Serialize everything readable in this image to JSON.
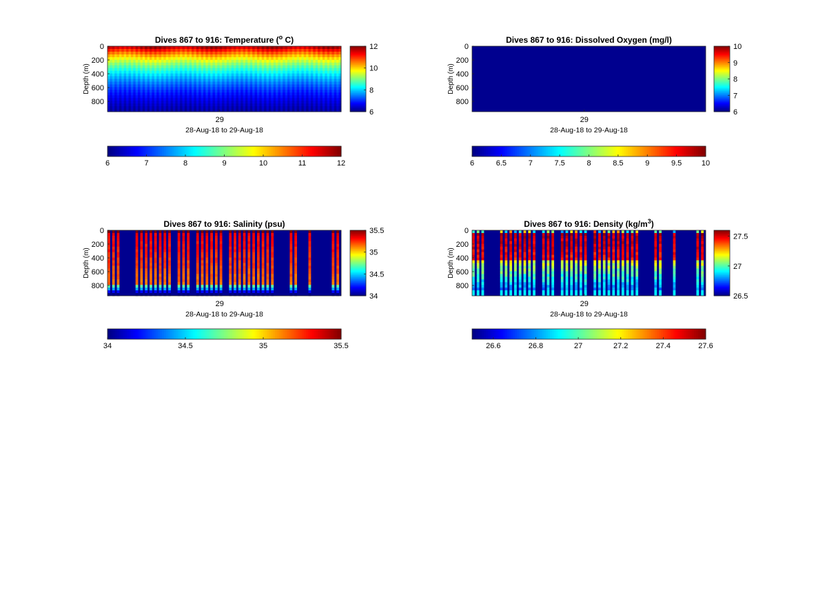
{
  "figure": {
    "background": "#ffffff",
    "colormap": "jet",
    "below_color": "#00008f"
  },
  "chart_data": [
    {
      "id": "temperature",
      "type": "heatmap",
      "title": "Dives 867 to 916: Temperature (",
      "title_sup": "o",
      "title_tail": " C)",
      "ylabel": "Depth (m)",
      "y_ticks": [
        0,
        200,
        400,
        600,
        800
      ],
      "ylim": [
        0,
        950
      ],
      "y_reversed": true,
      "x_ticks": [
        "29"
      ],
      "xlabel": "28-Aug-18 to 29-Aug-18",
      "clim": [
        6,
        12
      ],
      "colorbar_right_ticks": [
        "12",
        "10",
        "8",
        "6"
      ],
      "colorbar_right_tick_values": [
        12,
        10,
        8,
        6
      ],
      "colorbar_bottom_ticks": [
        "6",
        "7",
        "8",
        "9",
        "10",
        "11",
        "12"
      ],
      "colorbar_bottom_tick_values": [
        6,
        7,
        8,
        9,
        10,
        11,
        12
      ],
      "n_dives": 50,
      "pattern": "temperature",
      "gaps": []
    },
    {
      "id": "oxygen",
      "type": "heatmap",
      "title": "Dives 867 to 916: Dissolved Oxygen (mg/l)",
      "title_sup": "",
      "title_tail": "",
      "ylabel": "Depth (m)",
      "y_ticks": [
        0,
        200,
        400,
        600,
        800
      ],
      "ylim": [
        0,
        950
      ],
      "y_reversed": true,
      "x_ticks": [
        "29"
      ],
      "xlabel": "28-Aug-18 to 29-Aug-18",
      "clim": [
        6,
        10
      ],
      "colorbar_right_ticks": [
        "10",
        "9",
        "8",
        "7",
        "6"
      ],
      "colorbar_right_tick_values": [
        10,
        9,
        8,
        7,
        6
      ],
      "colorbar_bottom_ticks": [
        "6",
        "6.5",
        "7",
        "7.5",
        "8",
        "8.5",
        "9",
        "9.5",
        "10"
      ],
      "colorbar_bottom_tick_values": [
        6,
        6.5,
        7,
        7.5,
        8,
        8.5,
        9,
        9.5,
        10
      ],
      "n_dives": 50,
      "pattern": "constant",
      "gaps": []
    },
    {
      "id": "salinity",
      "type": "heatmap",
      "title": "Dives 867 to 916: Salinity (psu)",
      "title_sup": "",
      "title_tail": "",
      "ylabel": "Depth (m)",
      "y_ticks": [
        0,
        200,
        400,
        600,
        800
      ],
      "ylim": [
        0,
        950
      ],
      "y_reversed": true,
      "x_ticks": [
        "29"
      ],
      "xlabel": "28-Aug-18 to 29-Aug-18",
      "clim": [
        34,
        35.5
      ],
      "colorbar_right_ticks": [
        "35.5",
        "35",
        "34.5",
        "34"
      ],
      "colorbar_right_tick_values": [
        35.5,
        35,
        34.5,
        34
      ],
      "colorbar_bottom_ticks": [
        "34",
        "34.5",
        "35",
        "35.5"
      ],
      "colorbar_bottom_tick_values": [
        34,
        34.5,
        35,
        35.5
      ],
      "n_dives": 50,
      "pattern": "salinity",
      "gaps": [
        3,
        4,
        5,
        14,
        18,
        25,
        36,
        37,
        38,
        41,
        42,
        44,
        45,
        46,
        47
      ]
    },
    {
      "id": "density",
      "type": "heatmap",
      "title": "Dives 867 to 916: Density (kg/m",
      "title_sup": "3",
      "title_tail": ")",
      "ylabel": "Depth (m)",
      "y_ticks": [
        0,
        200,
        400,
        600,
        800
      ],
      "ylim": [
        0,
        950
      ],
      "y_reversed": true,
      "x_ticks": [
        "29"
      ],
      "xlabel": "28-Aug-18 to 29-Aug-18",
      "clim": [
        26.5,
        27.6
      ],
      "colorbar_right_ticks": [
        "27.5",
        "27",
        "26.5"
      ],
      "colorbar_right_tick_values": [
        27.5,
        27,
        26.5
      ],
      "colorbar_bottom_ticks": [
        "26.6",
        "26.8",
        "27",
        "27.2",
        "27.4",
        "27.6"
      ],
      "colorbar_bottom_tick_values": [
        26.6,
        26.8,
        27,
        27.2,
        27.4,
        27.6
      ],
      "n_dives": 50,
      "pattern": "density",
      "gaps": [
        3,
        4,
        5,
        14,
        18,
        25,
        36,
        37,
        38,
        41,
        42,
        44,
        45,
        46,
        47
      ]
    }
  ]
}
